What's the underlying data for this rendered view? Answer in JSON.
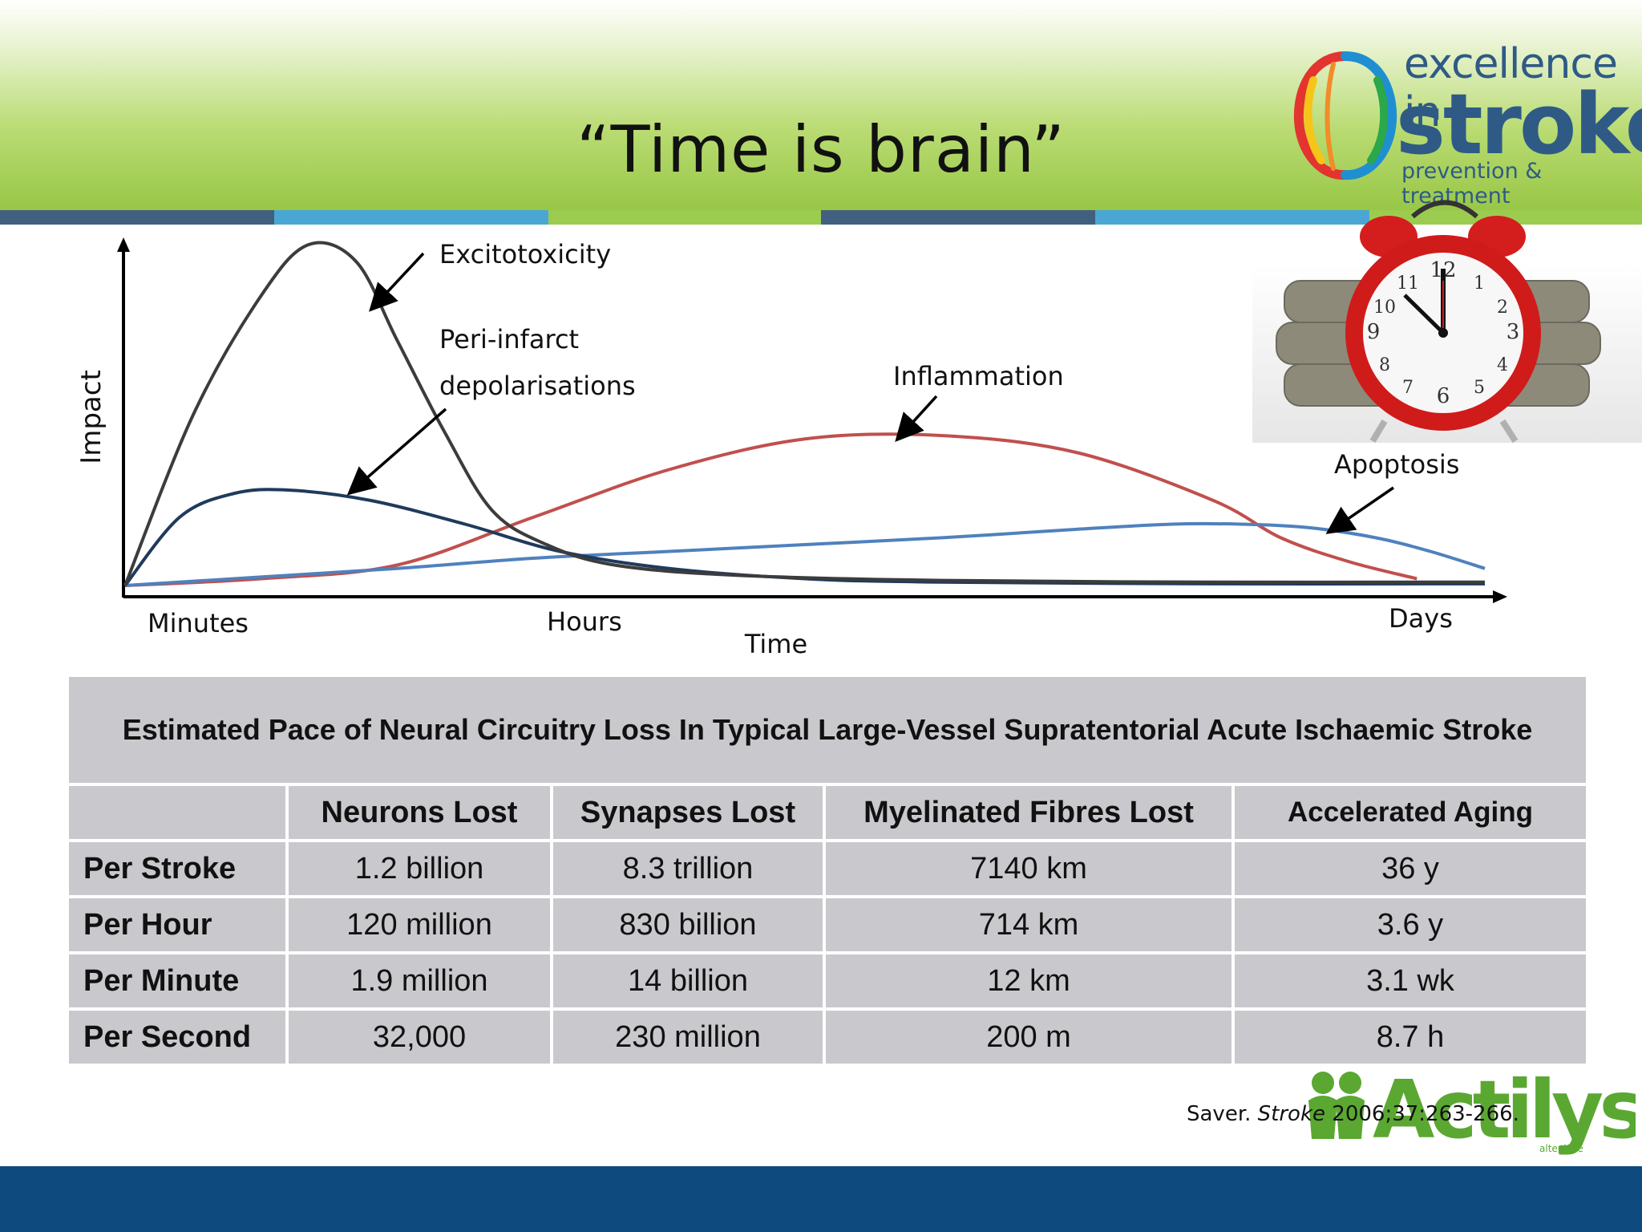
{
  "slide": {
    "title": "“Time is brain”"
  },
  "logo": {
    "line1": "excellence in",
    "line2": "stroke",
    "line3": "prevention & treatment"
  },
  "brand_logo": {
    "text": "Actilyse",
    "subtext": "alteplase"
  },
  "colors": {
    "header_green": "#98c746",
    "stripe": [
      "#41607f",
      "#4aa7d3",
      "#9ccc4f",
      "#41607f",
      "#4aa7d3",
      "#9ccc4f"
    ],
    "footer": "#0e4a7e",
    "excitotoxicity": "#3c3c3c",
    "peri_infarct": "#1f3a5c",
    "inflammation": "#c0504d",
    "apoptosis": "#4f81bd",
    "table_cell": "#c9c8cc"
  },
  "chart_data": {
    "type": "line",
    "xlabel": "Time",
    "ylabel": "Impact",
    "x_ticks": [
      "Minutes",
      "Hours",
      "Days"
    ],
    "annotations": [
      "Excitotoxicity",
      "Peri-infarct",
      "depolarisations",
      "Inflammation",
      "Apoptosis"
    ],
    "series": [
      {
        "name": "Excitotoxicity",
        "color": "#3c3c3c",
        "x": [
          0,
          0.05,
          0.1,
          0.135,
          0.17,
          0.2,
          0.235,
          0.27,
          0.31,
          0.36,
          0.45,
          0.6,
          0.8,
          1.0
        ],
        "y": [
          0,
          0.5,
          0.85,
          1.0,
          0.95,
          0.72,
          0.45,
          0.22,
          0.12,
          0.06,
          0.03,
          0.015,
          0.01,
          0.01
        ]
      },
      {
        "name": "Peri-infarct depolarisations",
        "color": "#1f3a5c",
        "x": [
          0,
          0.04,
          0.08,
          0.12,
          0.18,
          0.25,
          0.32,
          0.4,
          0.5,
          0.6,
          0.8,
          1.0
        ],
        "y": [
          0,
          0.2,
          0.27,
          0.28,
          0.25,
          0.18,
          0.1,
          0.05,
          0.02,
          0.01,
          0.005,
          0.005
        ]
      },
      {
        "name": "Inflammation",
        "color": "#c0504d",
        "x": [
          0,
          0.1,
          0.2,
          0.3,
          0.4,
          0.5,
          0.6,
          0.7,
          0.8,
          0.85,
          0.9,
          0.95
        ],
        "y": [
          0,
          0.02,
          0.06,
          0.2,
          0.34,
          0.43,
          0.44,
          0.39,
          0.25,
          0.14,
          0.07,
          0.02
        ]
      },
      {
        "name": "Apoptosis",
        "color": "#4f81bd",
        "x": [
          0,
          0.1,
          0.2,
          0.3,
          0.4,
          0.5,
          0.6,
          0.7,
          0.77,
          0.82,
          0.87,
          0.92,
          0.96,
          1.0
        ],
        "y": [
          0,
          0.025,
          0.05,
          0.08,
          0.1,
          0.12,
          0.14,
          0.165,
          0.18,
          0.18,
          0.17,
          0.14,
          0.1,
          0.05
        ]
      }
    ]
  },
  "table": {
    "title": "Estimated Pace of Neural Circuitry Loss In Typical Large-Vessel Supratentorial Acute Ischaemic Stroke",
    "headers": [
      "",
      "Neurons Lost",
      "Synapses Lost",
      "Myelinated Fibres Lost",
      "Accelerated Aging"
    ],
    "rows": [
      [
        "Per Stroke",
        "1.2 billion",
        "8.3 trillion",
        "7140 km",
        "36 y"
      ],
      [
        "Per Hour",
        "120 million",
        "830 billion",
        "714 km",
        "3.6 y"
      ],
      [
        "Per Minute",
        "1.9 million",
        "14 billion",
        "12 km",
        "3.1 wk"
      ],
      [
        "Per Second",
        "32,000",
        "230 million",
        "200 m",
        "8.7 h"
      ]
    ]
  },
  "citation": {
    "author": "Saver. ",
    "journal": "Stroke",
    "ref": " 2006;37:263-266."
  }
}
